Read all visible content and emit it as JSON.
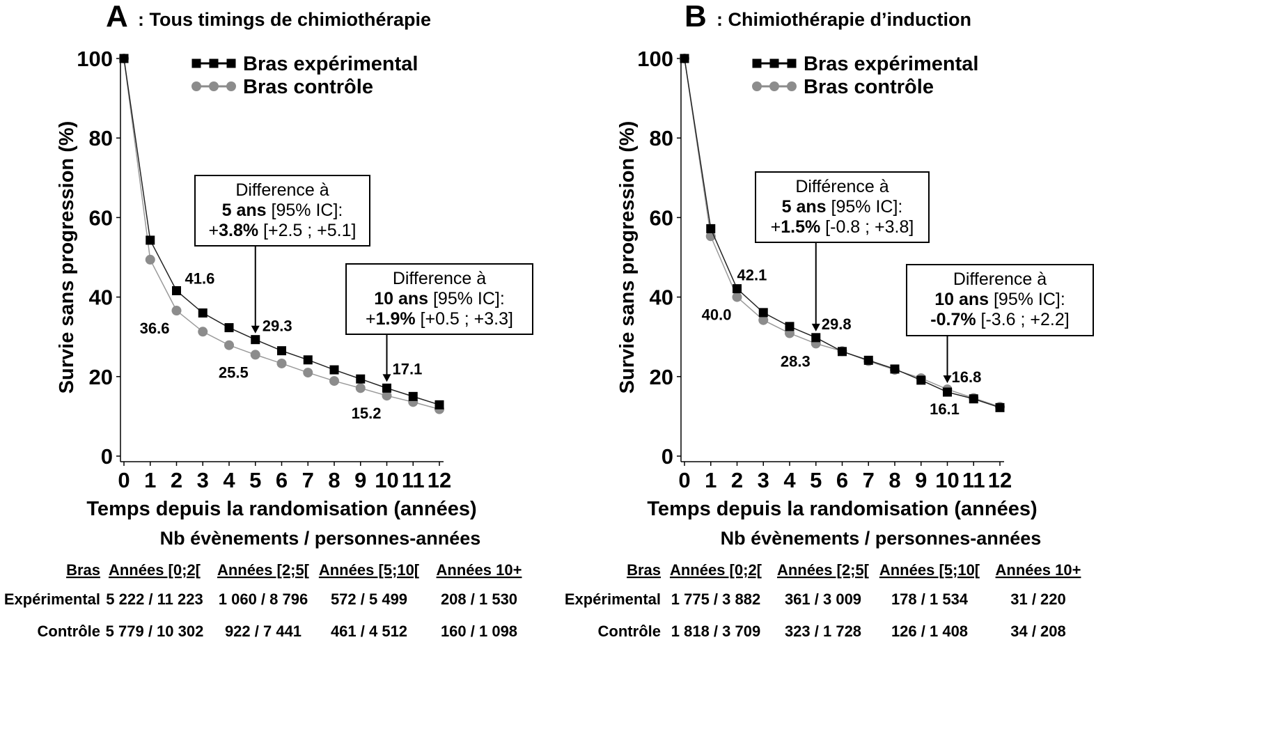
{
  "chart_data": [
    {
      "type": "line",
      "panel_letter": "A",
      "title": ": Tous timings de chimiothérapie",
      "xlabel": "Temps depuis la randomisation (années)",
      "ylabel": "Survie sans progression (%)",
      "xlim": [
        0,
        12
      ],
      "ylim": [
        0,
        100
      ],
      "xticks": [
        "0",
        "1",
        "2",
        "3",
        "4",
        "5",
        "6",
        "7",
        "8",
        "9",
        "10",
        "11",
        "12"
      ],
      "yticks": [
        "0",
        "20",
        "40",
        "60",
        "80",
        "100"
      ],
      "grid": false,
      "legend_position": "top",
      "x": [
        0,
        1,
        2,
        3,
        4,
        5,
        6,
        7,
        8,
        9,
        10,
        11,
        12
      ],
      "series": [
        {
          "name": "Bras expérimental",
          "marker": "square",
          "color": "#000000",
          "values": [
            100,
            54.3,
            41.6,
            36.0,
            32.3,
            29.3,
            26.5,
            24.2,
            21.7,
            19.4,
            17.1,
            15.0,
            12.9
          ]
        },
        {
          "name": "Bras contrôle",
          "marker": "circle",
          "color": "#8c8c8c",
          "values": [
            100,
            49.4,
            36.6,
            31.3,
            27.9,
            25.5,
            23.3,
            21.0,
            18.9,
            17.1,
            15.2,
            13.6,
            11.8
          ]
        }
      ],
      "data_labels": [
        {
          "text": "41.6",
          "x": 2,
          "series": 0
        },
        {
          "text": "36.6",
          "x": 2,
          "series": 1
        },
        {
          "text": "29.3",
          "x": 5,
          "series": 0
        },
        {
          "text": "25.5",
          "x": 5,
          "series": 1
        },
        {
          "text": "17.1",
          "x": 10,
          "series": 0
        },
        {
          "text": "15.2",
          "x": 10,
          "series": 1
        }
      ],
      "annotations": [
        {
          "line1": "Difference à",
          "line2_bold": "5 ans",
          "line2": " [95% IC]:",
          "line3_prefix": "+",
          "line3_bold": "3.8%",
          "line3": " [+2.5 ; +5.1]",
          "x": 5
        },
        {
          "line1": "Difference à",
          "line2_bold": "10 ans",
          "line2": " [95% IC]:",
          "line3_prefix": "+",
          "line3_bold": "1.9%",
          "line3": " [+0.5 ; +3.3]",
          "x": 10
        }
      ],
      "table": {
        "title": "Nb évènements / personnes-années",
        "headers": [
          "Bras",
          "Années [0;2[",
          "Années [2;5[",
          "Années [5;10[",
          "Années 10+"
        ],
        "rows": [
          [
            "Expérimental",
            "5 222 / 11 223",
            "1 060 / 8 796",
            "572 / 5 499",
            "208 / 1 530"
          ],
          [
            "Contrôle",
            "5 779 / 10 302",
            "922 / 7 441",
            "461 / 4 512",
            "160 / 1 098"
          ]
        ]
      }
    },
    {
      "type": "line",
      "panel_letter": "B",
      "title": ": Chimiothérapie d’induction",
      "xlabel": "Temps depuis la randomisation (années)",
      "ylabel": "Survie sans progression (%)",
      "xlim": [
        0,
        12
      ],
      "ylim": [
        0,
        100
      ],
      "xticks": [
        "0",
        "1",
        "2",
        "3",
        "4",
        "5",
        "6",
        "7",
        "8",
        "9",
        "10",
        "11",
        "12"
      ],
      "yticks": [
        "0",
        "20",
        "40",
        "60",
        "80",
        "100"
      ],
      "grid": false,
      "legend_position": "top",
      "x": [
        0,
        1,
        2,
        3,
        4,
        5,
        6,
        7,
        8,
        9,
        10,
        11,
        12
      ],
      "series": [
        {
          "name": "Bras expérimental",
          "marker": "square",
          "color": "#000000",
          "values": [
            100,
            57.2,
            42.1,
            36.1,
            32.6,
            29.8,
            26.3,
            24.1,
            21.9,
            19.1,
            16.1,
            14.4,
            12.2
          ]
        },
        {
          "name": "Bras contrôle",
          "marker": "circle",
          "color": "#8c8c8c",
          "values": [
            100,
            55.3,
            40.0,
            34.2,
            30.9,
            28.3,
            26.4,
            23.9,
            21.7,
            19.6,
            16.8,
            14.6,
            12.4
          ]
        }
      ],
      "data_labels": [
        {
          "text": "42.1",
          "x": 2,
          "series": 0
        },
        {
          "text": "40.0",
          "x": 2,
          "series": 1
        },
        {
          "text": "29.8",
          "x": 5,
          "series": 0
        },
        {
          "text": "28.3",
          "x": 5,
          "series": 1
        },
        {
          "text": "16.8",
          "x": 10,
          "series": 1
        },
        {
          "text": "16.1",
          "x": 10,
          "series": 0
        }
      ],
      "annotations": [
        {
          "line1": "Différence à",
          "line2_bold": "5 ans",
          "line2": " [95% IC]:",
          "line3_prefix": "+",
          "line3_bold": "1.5%",
          "line3": " [-0.8 ; +3.8]",
          "x": 5
        },
        {
          "line1": "Difference à",
          "line2_bold": "10 ans",
          "line2": " [95% IC]:",
          "line3_prefix": "",
          "line3_bold": "-0.7%",
          "line3": " [-3.6 ; +2.2]",
          "x": 10
        }
      ],
      "table": {
        "title": "Nb évènements / personnes-années",
        "headers": [
          "Bras",
          "Années [0;2[",
          "Années [2;5[",
          "Années [5;10[",
          "Années 10+"
        ],
        "rows": [
          [
            "Expérimental",
            "1 775 / 3 882",
            "361 / 3 009",
            "178 / 1 534",
            "31 / 220"
          ],
          [
            "Contrôle",
            "1 818 / 3 709",
            "323 / 1 728",
            "126 / 1 408",
            "34 / 208"
          ]
        ]
      }
    }
  ]
}
